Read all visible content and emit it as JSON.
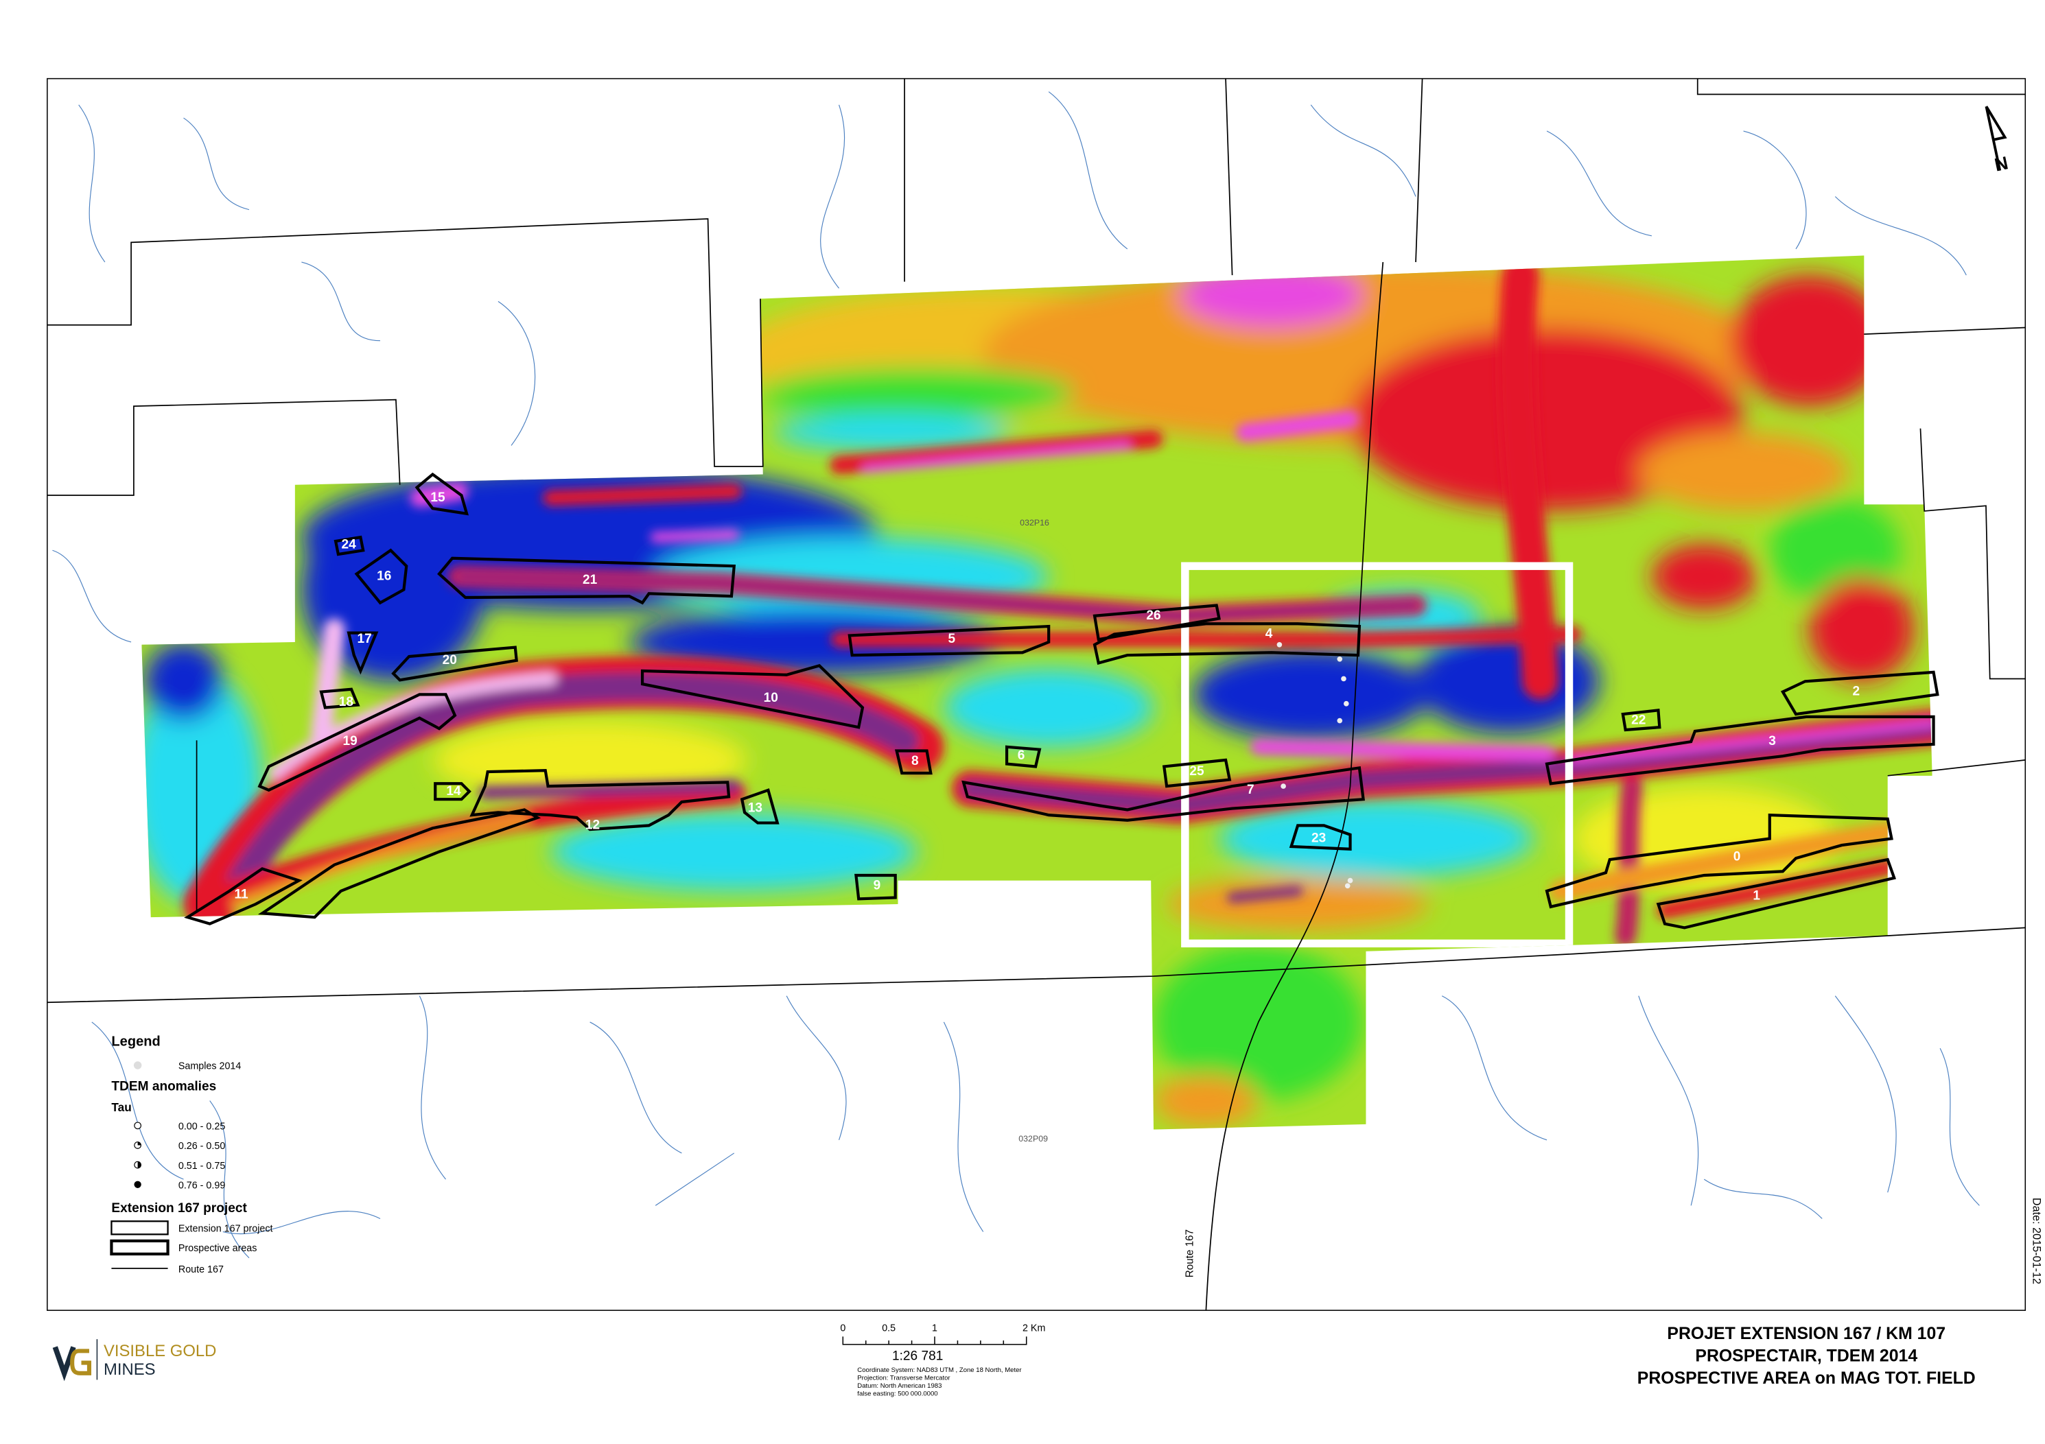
{
  "title": {
    "line1": "PROJET EXTENSION 167 / KM 107",
    "line2": "PROSPECTAIR, TDEM 2014",
    "line3": "PROSPECTIVE AREA on MAG TOT. FIELD"
  },
  "date": "Date: 2015-01-12",
  "logo": {
    "line1": "VISIBLE GOLD",
    "line2": "MINES",
    "mark": "VG",
    "colors": {
      "gold": "#b08d1e",
      "navy": "#1a2b3c"
    }
  },
  "north_arrow": "N",
  "map_labels": {
    "sheet_north": "032P16",
    "sheet_south": "032P09",
    "road": "Route 167"
  },
  "prospective_areas": [
    "0",
    "1",
    "2",
    "3",
    "4",
    "5",
    "6",
    "7",
    "8",
    "9",
    "10",
    "11",
    "12",
    "13",
    "14",
    "15",
    "16",
    "17",
    "18",
    "19",
    "20",
    "21",
    "22",
    "23",
    "24",
    "25",
    "26"
  ],
  "legend": {
    "title": "Legend",
    "samples": "Samples 2014",
    "tdem_title": "TDEM anomalies",
    "tau_title": "Tau",
    "tau_classes": [
      "0.00 - 0.25",
      "0.26 - 0.50",
      "0.51 - 0.75",
      "0.76 - 0.99"
    ],
    "project_title": "Extension 167 project",
    "project_items": [
      "Extension 167 project",
      "Prospective areas",
      "Route 167"
    ]
  },
  "scale_bar": {
    "labels": [
      "0",
      "0.5",
      "1",
      "2 Km"
    ],
    "ratio": "1:26 781",
    "info": [
      "Coordinate System: NAD83 UTM , Zone 18 North, Meter",
      "Projection: Transverse Mercator",
      "Datum: North American 1983",
      "false easting: 500 000.0000"
    ]
  },
  "colors": {
    "low_blue": "#1028d0",
    "cyan": "#28dcf0",
    "green": "#38e030",
    "yellow": "#f0ee20",
    "orange": "#f29a20",
    "red": "#e4142a",
    "magenta": "#e848e0",
    "purple": "#7e2c88",
    "pink": "#f4b8f0",
    "water": "#4a7fc0",
    "focus_box": "#ffffff"
  }
}
